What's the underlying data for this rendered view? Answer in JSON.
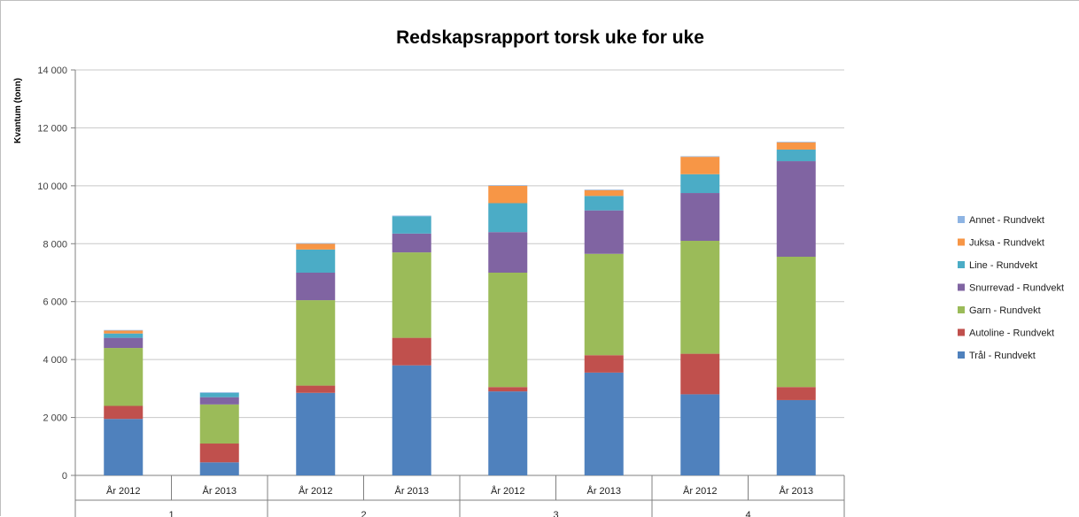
{
  "chart_data": {
    "type": "bar",
    "stacked": true,
    "title": "Redskapsrapport torsk uke for uke",
    "xlabel": "",
    "ylabel": "Kvantum (tonn)",
    "ylim": [
      0,
      14000
    ],
    "yticks": [
      0,
      2000,
      4000,
      6000,
      8000,
      10000,
      12000,
      14000
    ],
    "ytick_labels": [
      "0",
      "2 000",
      "4 000",
      "6 000",
      "8 000",
      "10 000",
      "12 000",
      "14 000"
    ],
    "grid": true,
    "legend_position": "right",
    "groups": [
      "1",
      "2",
      "3",
      "4"
    ],
    "categories": [
      "År 2012",
      "År 2013",
      "År 2012",
      "År 2013",
      "År 2012",
      "År 2013",
      "År 2012",
      "År 2013"
    ],
    "series": [
      {
        "name": "Trål - Rundvekt",
        "color": "#4f81bd",
        "values": [
          1950,
          450,
          2850,
          3800,
          2900,
          3550,
          2800,
          2600
        ]
      },
      {
        "name": "Autoline - Rundvekt",
        "color": "#c0504d",
        "values": [
          450,
          650,
          250,
          950,
          150,
          600,
          1400,
          450
        ]
      },
      {
        "name": "Garn - Rundvekt",
        "color": "#9bbb59",
        "values": [
          2000,
          1350,
          2950,
          2950,
          3950,
          3500,
          3900,
          4500
        ]
      },
      {
        "name": "Snurrevad - Rundvekt",
        "color": "#8064a2",
        "values": [
          350,
          250,
          950,
          650,
          1400,
          1500,
          1650,
          3300
        ]
      },
      {
        "name": "Line - Rundvekt",
        "color": "#4bacc6",
        "values": [
          150,
          150,
          800,
          600,
          1000,
          500,
          650,
          400
        ]
      },
      {
        "name": "Juksa - Rundvekt",
        "color": "#f79646",
        "values": [
          100,
          0,
          200,
          0,
          600,
          200,
          600,
          250
        ]
      },
      {
        "name": "Annet - Rundvekt",
        "color": "#8eb4e3",
        "values": [
          20,
          20,
          20,
          20,
          20,
          20,
          20,
          20
        ]
      }
    ]
  }
}
